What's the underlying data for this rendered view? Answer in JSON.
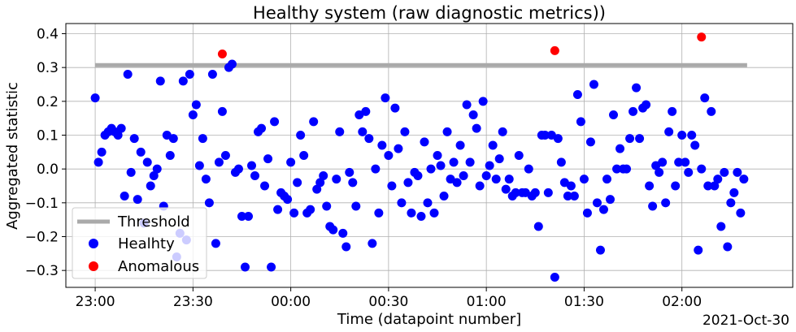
{
  "chart_data": {
    "type": "scatter",
    "title": "Healthy system (raw diagnostic metrics))",
    "xlabel": "Time (datapoint number]",
    "ylabel": "Aggregated statistic",
    "date_label": "2021-Oct-30",
    "x_ticks": [
      "23:00",
      "23:30",
      "00:00",
      "00:30",
      "01:00",
      "01:30",
      "02:00"
    ],
    "x_tick_minutes": [
      0,
      30,
      60,
      90,
      120,
      150,
      180
    ],
    "x_range_minutes": [
      -9,
      214
    ],
    "y_ticks": [
      "−0.3",
      "−0.2",
      "−0.1",
      "0.0",
      "0.1",
      "0.2",
      "0.3",
      "0.4"
    ],
    "y_tick_values": [
      -0.3,
      -0.2,
      -0.1,
      0.0,
      0.1,
      0.2,
      0.3,
      0.4
    ],
    "ylim": [
      -0.35,
      0.43
    ],
    "grid": true,
    "legend_position": "lower-left",
    "threshold": {
      "name": "Threshold",
      "value": 0.307,
      "x_start": 0,
      "x_end": 200,
      "color": "#aaaaaa"
    },
    "series": [
      {
        "name": "Healhty",
        "color": "#0000ff",
        "points": [
          [
            0,
            0.21
          ],
          [
            1,
            0.02
          ],
          [
            2,
            0.05
          ],
          [
            3,
            0.1
          ],
          [
            4,
            0.11
          ],
          [
            5,
            0.12
          ],
          [
            6,
            0.11
          ],
          [
            7,
            0.1
          ],
          [
            8,
            0.12
          ],
          [
            9,
            -0.08
          ],
          [
            10,
            0.28
          ],
          [
            11,
            -0.01
          ],
          [
            12,
            0.09
          ],
          [
            13,
            -0.09
          ],
          [
            14,
            0.05
          ],
          [
            15,
            -0.16
          ],
          [
            16,
            0.02
          ],
          [
            17,
            -0.05
          ],
          [
            18,
            -0.02
          ],
          [
            19,
            0.0
          ],
          [
            20,
            0.26
          ],
          [
            21,
            -0.11
          ],
          [
            22,
            0.1
          ],
          [
            23,
            0.04
          ],
          [
            24,
            0.09
          ],
          [
            25,
            -0.26
          ],
          [
            26,
            -0.19
          ],
          [
            27,
            0.26
          ],
          [
            28,
            -0.21
          ],
          [
            29,
            0.28
          ],
          [
            30,
            0.16
          ],
          [
            31,
            0.19
          ],
          [
            32,
            0.01
          ],
          [
            33,
            0.09
          ],
          [
            34,
            -0.03
          ],
          [
            35,
            -0.1
          ],
          [
            36,
            0.28
          ],
          [
            37,
            -0.22
          ],
          [
            38,
            0.02
          ],
          [
            39,
            0.17
          ],
          [
            40,
            0.04
          ],
          [
            41,
            0.3
          ],
          [
            42,
            0.31
          ],
          [
            43,
            -0.01
          ],
          [
            44,
            0.0
          ],
          [
            45,
            -0.14
          ],
          [
            46,
            -0.29
          ],
          [
            47,
            -0.14
          ],
          [
            48,
            0.01
          ],
          [
            49,
            -0.02
          ],
          [
            50,
            0.11
          ],
          [
            51,
            0.12
          ],
          [
            52,
            -0.05
          ],
          [
            53,
            0.03
          ],
          [
            54,
            -0.29
          ],
          [
            55,
            0.14
          ],
          [
            56,
            -0.12
          ],
          [
            57,
            -0.07
          ],
          [
            58,
            -0.08
          ],
          [
            59,
            -0.09
          ],
          [
            60,
            0.02
          ],
          [
            61,
            -0.13
          ],
          [
            62,
            -0.04
          ],
          [
            63,
            0.1
          ],
          [
            64,
            0.04
          ],
          [
            65,
            -0.13
          ],
          [
            66,
            -0.12
          ],
          [
            67,
            0.14
          ],
          [
            68,
            -0.06
          ],
          [
            69,
            -0.04
          ],
          [
            70,
            -0.02
          ],
          [
            71,
            -0.11
          ],
          [
            72,
            -0.17
          ],
          [
            73,
            -0.18
          ],
          [
            74,
            -0.03
          ],
          [
            75,
            0.11
          ],
          [
            76,
            -0.19
          ],
          [
            77,
            -0.23
          ],
          [
            78,
            -0.01
          ],
          [
            79,
            -0.04
          ],
          [
            80,
            -0.11
          ],
          [
            81,
            0.16
          ],
          [
            82,
            0.11
          ],
          [
            83,
            0.17
          ],
          [
            84,
            0.09
          ],
          [
            85,
            -0.22
          ],
          [
            86,
            0.0
          ],
          [
            87,
            -0.13
          ],
          [
            88,
            0.07
          ],
          [
            89,
            0.21
          ],
          [
            90,
            0.04
          ],
          [
            91,
            -0.05
          ],
          [
            92,
            0.18
          ],
          [
            93,
            0.06
          ],
          [
            94,
            -0.1
          ],
          [
            95,
            0.11
          ],
          [
            96,
            -0.04
          ],
          [
            97,
            -0.13
          ],
          [
            98,
            -0.01
          ],
          [
            99,
            -0.02
          ],
          [
            100,
            -0.14
          ],
          [
            101,
            0.08
          ],
          [
            102,
            -0.1
          ],
          [
            103,
            0.0
          ],
          [
            104,
            -0.13
          ],
          [
            105,
            0.04
          ],
          [
            106,
            0.01
          ],
          [
            107,
            -0.08
          ],
          [
            108,
            0.11
          ],
          [
            109,
            -0.03
          ],
          [
            110,
            0.02
          ],
          [
            111,
            -0.04
          ],
          [
            112,
            0.07
          ],
          [
            113,
            -0.02
          ],
          [
            114,
            0.19
          ],
          [
            115,
            0.02
          ],
          [
            116,
            0.16
          ],
          [
            117,
            0.12
          ],
          [
            118,
            -0.05
          ],
          [
            119,
            0.2
          ],
          [
            120,
            -0.02
          ],
          [
            121,
            0.01
          ],
          [
            122,
            0.07
          ],
          [
            123,
            -0.03
          ],
          [
            124,
            0.03
          ],
          [
            125,
            0.11
          ],
          [
            126,
            -0.06
          ],
          [
            127,
            -0.03
          ],
          [
            128,
            -0.08
          ],
          [
            129,
            -0.07
          ],
          [
            130,
            0.04
          ],
          [
            131,
            -0.07
          ],
          [
            132,
            -0.07
          ],
          [
            133,
            0.0
          ],
          [
            134,
            -0.08
          ],
          [
            135,
            -0.07
          ],
          [
            136,
            -0.17
          ],
          [
            137,
            0.1
          ],
          [
            138,
            0.1
          ],
          [
            139,
            -0.07
          ],
          [
            140,
            0.1
          ],
          [
            141,
            -0.32
          ],
          [
            142,
            0.09
          ],
          [
            143,
            0.02
          ],
          [
            144,
            -0.04
          ],
          [
            145,
            -0.08
          ],
          [
            146,
            -0.05
          ],
          [
            147,
            -0.08
          ],
          [
            148,
            0.22
          ],
          [
            149,
            0.14
          ],
          [
            150,
            -0.03
          ],
          [
            151,
            -0.13
          ],
          [
            152,
            0.08
          ],
          [
            153,
            0.25
          ],
          [
            154,
            -0.1
          ],
          [
            155,
            -0.24
          ],
          [
            156,
            -0.12
          ],
          [
            157,
            -0.03
          ],
          [
            158,
            -0.09
          ],
          [
            159,
            0.16
          ],
          [
            160,
            0.0
          ],
          [
            161,
            0.06
          ],
          [
            162,
            0.0
          ],
          [
            163,
            0.0
          ],
          [
            164,
            0.09
          ],
          [
            165,
            0.17
          ],
          [
            166,
            0.24
          ],
          [
            167,
            0.09
          ],
          [
            168,
            0.18
          ],
          [
            169,
            0.19
          ],
          [
            170,
            -0.05
          ],
          [
            171,
            -0.11
          ],
          [
            172,
            0.01
          ],
          [
            173,
            -0.01
          ],
          [
            174,
            0.02
          ],
          [
            175,
            -0.1
          ],
          [
            176,
            0.11
          ],
          [
            177,
            0.17
          ],
          [
            178,
            -0.05
          ],
          [
            179,
            0.02
          ],
          [
            180,
            0.1
          ],
          [
            181,
            0.02
          ],
          [
            182,
            -0.01
          ],
          [
            183,
            0.1
          ],
          [
            184,
            0.07
          ],
          [
            185,
            -0.24
          ],
          [
            186,
            0.0
          ],
          [
            187,
            0.21
          ],
          [
            188,
            -0.05
          ],
          [
            189,
            0.17
          ],
          [
            190,
            -0.05
          ],
          [
            191,
            -0.03
          ],
          [
            192,
            -0.17
          ],
          [
            193,
            -0.01
          ],
          [
            194,
            -0.23
          ],
          [
            195,
            -0.1
          ],
          [
            196,
            -0.07
          ],
          [
            197,
            -0.01
          ],
          [
            198,
            -0.13
          ],
          [
            199,
            -0.03
          ]
        ]
      },
      {
        "name": "Anomalous",
        "color": "#ff0000",
        "points": [
          [
            39,
            0.34
          ],
          [
            141,
            0.35
          ],
          [
            186,
            0.39
          ]
        ]
      }
    ]
  }
}
